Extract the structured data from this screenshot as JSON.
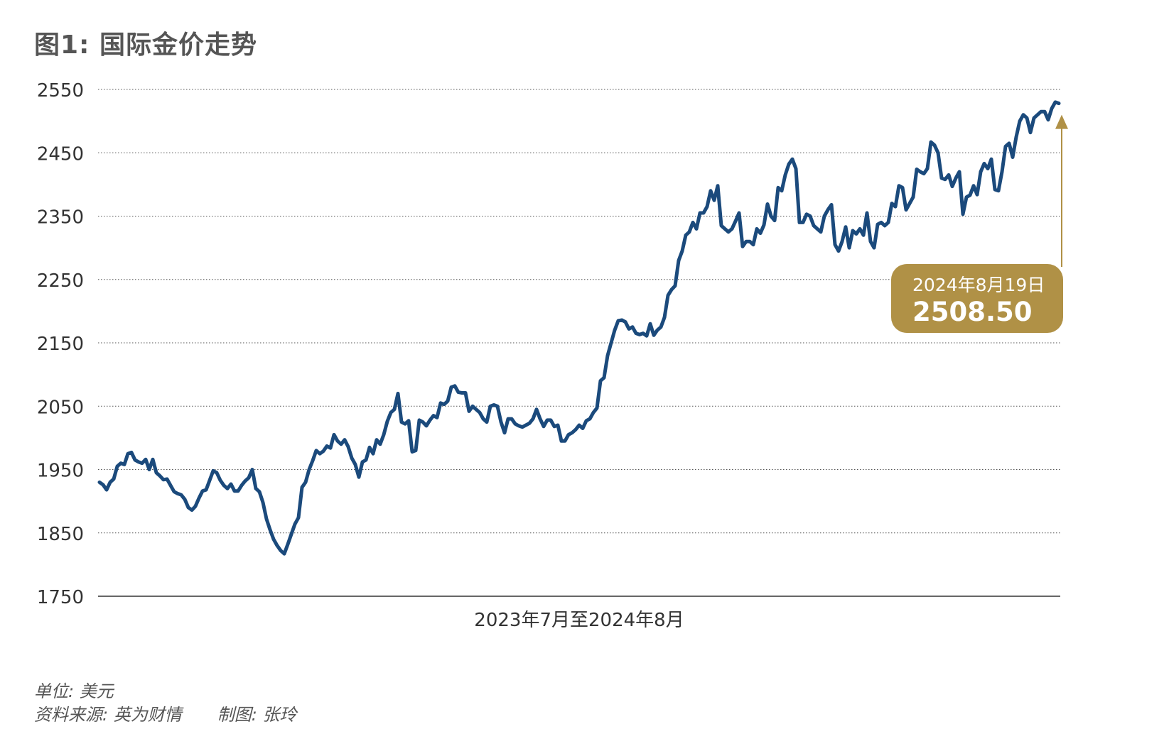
{
  "title": "图1: 国际金价走势",
  "xlabel": "2023年7月至2024年8月",
  "notes": {
    "unit": "单位: 美元",
    "source": "资料来源: 英为财情",
    "credit": "制图: 张玲"
  },
  "colors": {
    "line": "#1b4a7c",
    "callout": "#b09146",
    "grid": "#555555",
    "axis": "#333333",
    "title": "#555555"
  },
  "chart_data": {
    "type": "line",
    "title": "图1: 国际金价走势",
    "xlabel": "2023年7月至2024年8月",
    "ylabel": "",
    "unit": "美元",
    "ylim": [
      1750,
      2550
    ],
    "yticks": [
      1750,
      1850,
      1950,
      2050,
      2150,
      2250,
      2350,
      2450,
      2550
    ],
    "grid": true,
    "grid_style": "dotted",
    "legend": "none",
    "x_range": [
      "2023-07",
      "2024-08"
    ],
    "series": [
      {
        "values": [
          1930,
          1926,
          1918,
          1930,
          1935,
          1955,
          1960,
          1958,
          1975,
          1977,
          1965,
          1962,
          1960,
          1966,
          1950,
          1966,
          1945,
          1940,
          1934,
          1935,
          1925,
          1915,
          1912,
          1910,
          1903,
          1890,
          1886,
          1892,
          1905,
          1916,
          1918,
          1933,
          1948,
          1945,
          1933,
          1925,
          1920,
          1927,
          1916,
          1916,
          1925,
          1932,
          1937,
          1950,
          1920,
          1915,
          1898,
          1872,
          1855,
          1840,
          1830,
          1822,
          1817,
          1832,
          1848,
          1864,
          1874,
          1922,
          1930,
          1950,
          1964,
          1980,
          1975,
          1979,
          1987,
          1984,
          2005,
          1995,
          1990,
          1997,
          1986,
          1968,
          1958,
          1938,
          1962,
          1965,
          1985,
          1975,
          1997,
          1990,
          2005,
          2026,
          2040,
          2045,
          2070,
          2025,
          2022,
          2027,
          1978,
          1980,
          2028,
          2025,
          2019,
          2028,
          2035,
          2032,
          2055,
          2053,
          2058,
          2080,
          2082,
          2072,
          2071,
          2071,
          2042,
          2050,
          2045,
          2040,
          2030,
          2025,
          2050,
          2052,
          2050,
          2025,
          2008,
          2030,
          2030,
          2022,
          2019,
          2017,
          2020,
          2023,
          2030,
          2045,
          2030,
          2018,
          2028,
          2028,
          2018,
          2020,
          1995,
          1995,
          2005,
          2008,
          2013,
          2020,
          2015,
          2027,
          2030,
          2040,
          2047,
          2090,
          2095,
          2130,
          2150,
          2170,
          2185,
          2186,
          2183,
          2172,
          2175,
          2165,
          2163,
          2165,
          2161,
          2180,
          2162,
          2170,
          2175,
          2190,
          2225,
          2234,
          2240,
          2280,
          2295,
          2320,
          2325,
          2340,
          2330,
          2355,
          2355,
          2365,
          2390,
          2375,
          2398,
          2335,
          2330,
          2325,
          2330,
          2342,
          2355,
          2302,
          2310,
          2310,
          2305,
          2330,
          2323,
          2336,
          2369,
          2350,
          2343,
          2395,
          2390,
          2415,
          2432,
          2440,
          2425,
          2340,
          2340,
          2353,
          2350,
          2335,
          2330,
          2325,
          2350,
          2360,
          2368,
          2305,
          2295,
          2310,
          2333,
          2300,
          2327,
          2322,
          2330,
          2320,
          2355,
          2310,
          2300,
          2337,
          2340,
          2335,
          2340,
          2370,
          2365,
          2398,
          2395,
          2360,
          2370,
          2380,
          2424,
          2420,
          2417,
          2425,
          2467,
          2462,
          2450,
          2410,
          2408,
          2415,
          2397,
          2410,
          2420,
          2353,
          2380,
          2383,
          2398,
          2384,
          2420,
          2433,
          2425,
          2440,
          2392,
          2390,
          2420,
          2460,
          2465,
          2443,
          2475,
          2500,
          2510,
          2505,
          2482,
          2505,
          2510,
          2515,
          2515,
          2502,
          2520,
          2530,
          2528
        ]
      }
    ],
    "annotations": [
      {
        "date_label": "2024年8月19日",
        "value_label": "2508.50",
        "value": 2508.5
      }
    ]
  }
}
